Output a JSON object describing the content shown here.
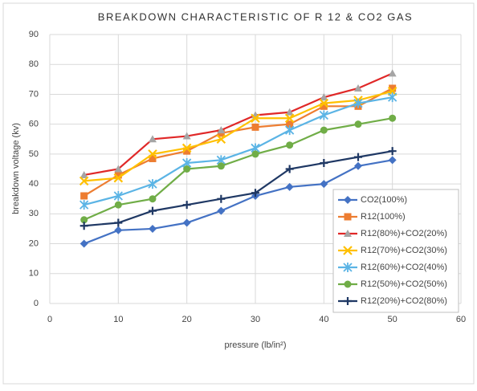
{
  "chart_data": {
    "type": "line",
    "title": "BREAKDOWN CHARACTERISTIC OF R 12 & CO2 GAS",
    "xlabel": "pressure (lb/in²)",
    "ylabel": "breakdown voltage (kv)",
    "x": [
      5,
      10,
      15,
      20,
      25,
      30,
      35,
      40,
      45,
      50
    ],
    "xlim": [
      0,
      60
    ],
    "xticks": [
      0,
      10,
      20,
      30,
      40,
      50,
      60
    ],
    "ylim": [
      0,
      90
    ],
    "yticks": [
      0,
      10,
      20,
      30,
      40,
      50,
      60,
      70,
      80,
      90
    ],
    "grid": true,
    "legend": "lower right",
    "series": [
      {
        "name": "CO2(100%)",
        "color": "#4472c4",
        "marker": "diamond",
        "marker_color": "#4472c4",
        "values": [
          20,
          24.5,
          25,
          27,
          31,
          36,
          39,
          40,
          46,
          48
        ]
      },
      {
        "name": "R12(100%)",
        "color": "#ed7d31",
        "marker": "square",
        "marker_color": "#ed7d31",
        "values": [
          36,
          43,
          48.5,
          51,
          57,
          59,
          60,
          66,
          66,
          72
        ]
      },
      {
        "name": "R12(80%)+CO2(20%)",
        "color": "#e02828",
        "marker": "triangle",
        "marker_color": "#a5a5a5",
        "values": [
          43,
          45,
          55,
          56,
          58,
          63,
          64,
          69,
          72,
          77
        ]
      },
      {
        "name": "R12(70%)+CO2(30%)",
        "color": "#ffc000",
        "marker": "x",
        "marker_color": "#ffc000",
        "values": [
          41,
          42,
          50,
          52,
          55,
          62,
          62,
          67,
          68,
          71
        ]
      },
      {
        "name": "R12(60%)+CO2(40%)",
        "color": "#5bb4e5",
        "marker": "star",
        "marker_color": "#5bb4e5",
        "values": [
          33,
          36,
          40,
          47,
          48,
          52,
          58,
          63,
          67,
          69
        ]
      },
      {
        "name": "R12(50%)+CO2(50%)",
        "color": "#70ad47",
        "marker": "circle",
        "marker_color": "#70ad47",
        "values": [
          28,
          33,
          35,
          45,
          46,
          50,
          53,
          58,
          60,
          62
        ]
      },
      {
        "name": "R12(20%)+CO2(80%)",
        "color": "#1f3864",
        "marker": "plus",
        "marker_color": "#1f3864",
        "values": [
          26,
          27,
          31,
          33,
          35,
          37,
          45,
          47,
          49,
          51
        ]
      }
    ]
  }
}
